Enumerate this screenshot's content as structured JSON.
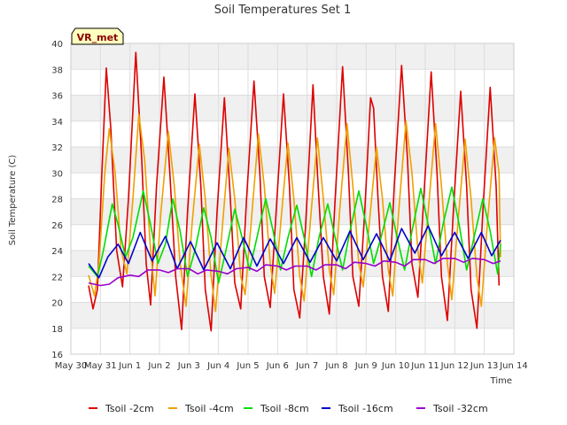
{
  "chart_data": {
    "type": "line",
    "title": "Soil Temperatures Set 1",
    "xlabel": "Time",
    "ylabel": "Soil Temperature (C)",
    "xlim": [
      0,
      15
    ],
    "ylim": [
      16,
      40
    ],
    "yticks": [
      16,
      18,
      20,
      22,
      24,
      26,
      28,
      30,
      32,
      34,
      36,
      38,
      40
    ],
    "xtick_labels": [
      "May 30",
      "May 31",
      "Jun 1",
      "Jun 2",
      "Jun 3",
      "Jun 4",
      "Jun 5",
      "Jun 6",
      "Jun 7",
      "Jun 8",
      "Jun 9",
      "Jun 10",
      "Jun 11",
      "Jun 12",
      "Jun 13",
      "Jun 14"
    ],
    "grid": true,
    "legend_position": "bottom",
    "badge": "VR_met",
    "series": [
      {
        "name": "Tsoil -2cm",
        "color": "#dd0000",
        "points": [
          [
            0.6,
            21.3
          ],
          [
            0.75,
            19.5
          ],
          [
            0.9,
            21
          ],
          [
            1.05,
            30
          ],
          [
            1.2,
            38.1
          ],
          [
            1.35,
            33.5
          ],
          [
            1.55,
            24
          ],
          [
            1.75,
            21.2
          ],
          [
            1.95,
            28
          ],
          [
            2.2,
            39.3
          ],
          [
            2.4,
            31
          ],
          [
            2.55,
            23
          ],
          [
            2.7,
            19.8
          ],
          [
            2.9,
            29
          ],
          [
            3.15,
            37.4
          ],
          [
            3.35,
            30
          ],
          [
            3.55,
            22
          ],
          [
            3.75,
            17.9
          ],
          [
            3.95,
            27
          ],
          [
            4.2,
            36.1
          ],
          [
            4.4,
            29
          ],
          [
            4.55,
            21
          ],
          [
            4.75,
            17.8
          ],
          [
            4.95,
            27
          ],
          [
            5.2,
            35.8
          ],
          [
            5.4,
            28
          ],
          [
            5.55,
            21.5
          ],
          [
            5.75,
            19.5
          ],
          [
            5.95,
            28
          ],
          [
            6.2,
            37.1
          ],
          [
            6.4,
            30
          ],
          [
            6.55,
            22
          ],
          [
            6.75,
            19.6
          ],
          [
            6.95,
            27
          ],
          [
            7.2,
            36.1
          ],
          [
            7.4,
            29
          ],
          [
            7.55,
            21
          ],
          [
            7.75,
            18.8
          ],
          [
            7.95,
            26
          ],
          [
            8.2,
            36.8
          ],
          [
            8.35,
            30
          ],
          [
            8.55,
            22
          ],
          [
            8.75,
            19.1
          ],
          [
            8.95,
            28
          ],
          [
            9.2,
            38.2
          ],
          [
            9.4,
            30
          ],
          [
            9.55,
            22
          ],
          [
            9.75,
            19.7
          ],
          [
            9.95,
            27
          ],
          [
            10.15,
            35.8
          ],
          [
            10.25,
            35
          ],
          [
            10.4,
            28
          ],
          [
            10.55,
            22
          ],
          [
            10.75,
            19.3
          ],
          [
            10.95,
            29
          ],
          [
            11.2,
            38.3
          ],
          [
            11.4,
            31
          ],
          [
            11.55,
            23
          ],
          [
            11.75,
            20.4
          ],
          [
            11.95,
            28
          ],
          [
            12.2,
            37.8
          ],
          [
            12.4,
            30
          ],
          [
            12.55,
            22
          ],
          [
            12.75,
            18.6
          ],
          [
            12.95,
            27
          ],
          [
            13.2,
            36.3
          ],
          [
            13.4,
            29
          ],
          [
            13.55,
            21
          ],
          [
            13.75,
            18
          ],
          [
            13.95,
            27
          ],
          [
            14.2,
            36.6
          ],
          [
            14.4,
            29
          ],
          [
            14.5,
            21.3
          ]
        ]
      },
      {
        "name": "Tsoil -4cm",
        "color": "#f0a000",
        "points": [
          [
            0.6,
            22.1
          ],
          [
            0.8,
            20.5
          ],
          [
            0.95,
            23
          ],
          [
            1.15,
            30
          ],
          [
            1.3,
            33.4
          ],
          [
            1.5,
            30
          ],
          [
            1.7,
            24
          ],
          [
            1.9,
            22.2
          ],
          [
            2.1,
            28
          ],
          [
            2.3,
            34.5
          ],
          [
            2.5,
            31
          ],
          [
            2.7,
            24
          ],
          [
            2.85,
            20.5
          ],
          [
            3.05,
            27
          ],
          [
            3.3,
            33.2
          ],
          [
            3.5,
            29
          ],
          [
            3.7,
            23
          ],
          [
            3.9,
            19.7
          ],
          [
            4.1,
            26
          ],
          [
            4.35,
            32.2
          ],
          [
            4.55,
            28
          ],
          [
            4.75,
            22
          ],
          [
            4.9,
            19.3
          ],
          [
            5.1,
            25
          ],
          [
            5.35,
            31.9
          ],
          [
            5.55,
            28
          ],
          [
            5.75,
            22
          ],
          [
            5.9,
            20.6
          ],
          [
            6.1,
            26
          ],
          [
            6.35,
            33
          ],
          [
            6.55,
            29
          ],
          [
            6.75,
            23
          ],
          [
            6.9,
            20.7
          ],
          [
            7.1,
            26
          ],
          [
            7.35,
            32.3
          ],
          [
            7.55,
            28
          ],
          [
            7.75,
            22
          ],
          [
            7.9,
            20.1
          ],
          [
            8.1,
            26
          ],
          [
            8.35,
            32.7
          ],
          [
            8.55,
            28
          ],
          [
            8.75,
            22.5
          ],
          [
            8.9,
            20.6
          ],
          [
            9.1,
            27
          ],
          [
            9.35,
            33.8
          ],
          [
            9.55,
            29
          ],
          [
            9.75,
            23
          ],
          [
            9.9,
            21.2
          ],
          [
            10.1,
            26
          ],
          [
            10.35,
            32
          ],
          [
            10.55,
            28
          ],
          [
            10.75,
            22.5
          ],
          [
            10.9,
            20.5
          ],
          [
            11.1,
            27
          ],
          [
            11.35,
            34
          ],
          [
            11.55,
            30
          ],
          [
            11.75,
            24
          ],
          [
            11.9,
            21.5
          ],
          [
            12.1,
            27
          ],
          [
            12.35,
            33.8
          ],
          [
            12.55,
            29
          ],
          [
            12.75,
            23
          ],
          [
            12.9,
            20.2
          ],
          [
            13.1,
            26
          ],
          [
            13.35,
            32.6
          ],
          [
            13.55,
            28
          ],
          [
            13.75,
            22
          ],
          [
            13.9,
            19.7
          ],
          [
            14.1,
            26
          ],
          [
            14.35,
            32.7
          ],
          [
            14.5,
            30
          ],
          [
            14.55,
            23.5
          ]
        ]
      },
      {
        "name": "Tsoil -8cm",
        "color": "#00dd00",
        "points": [
          [
            0.6,
            22.8
          ],
          [
            0.9,
            22
          ],
          [
            1.1,
            24
          ],
          [
            1.4,
            27.6
          ],
          [
            1.6,
            26
          ],
          [
            1.85,
            23.5
          ],
          [
            2.1,
            25
          ],
          [
            2.45,
            28.6
          ],
          [
            2.7,
            26
          ],
          [
            2.95,
            23
          ],
          [
            3.2,
            24.5
          ],
          [
            3.45,
            28
          ],
          [
            3.7,
            25.5
          ],
          [
            3.95,
            22
          ],
          [
            4.2,
            24
          ],
          [
            4.5,
            27.3
          ],
          [
            4.75,
            25
          ],
          [
            5,
            21.5
          ],
          [
            5.25,
            24
          ],
          [
            5.55,
            27.2
          ],
          [
            5.8,
            25
          ],
          [
            6.05,
            22.5
          ],
          [
            6.3,
            25
          ],
          [
            6.6,
            28
          ],
          [
            6.85,
            25.5
          ],
          [
            7.1,
            22.5
          ],
          [
            7.35,
            25
          ],
          [
            7.65,
            27.5
          ],
          [
            7.9,
            25
          ],
          [
            8.15,
            22
          ],
          [
            8.4,
            25
          ],
          [
            8.7,
            27.6
          ],
          [
            8.95,
            25
          ],
          [
            9.2,
            22.5
          ],
          [
            9.45,
            25.5
          ],
          [
            9.75,
            28.6
          ],
          [
            10,
            26
          ],
          [
            10.25,
            23
          ],
          [
            10.5,
            25
          ],
          [
            10.8,
            27.7
          ],
          [
            11.05,
            25
          ],
          [
            11.3,
            22.5
          ],
          [
            11.55,
            25.5
          ],
          [
            11.85,
            28.8
          ],
          [
            12.1,
            26
          ],
          [
            12.35,
            23
          ],
          [
            12.6,
            26
          ],
          [
            12.9,
            28.9
          ],
          [
            13.15,
            26
          ],
          [
            13.4,
            22.5
          ],
          [
            13.65,
            25
          ],
          [
            13.95,
            28
          ],
          [
            14.2,
            25.5
          ],
          [
            14.45,
            22.2
          ],
          [
            14.55,
            24.5
          ]
        ]
      },
      {
        "name": "Tsoil -16cm",
        "color": "#0000cc",
        "points": [
          [
            0.6,
            23
          ],
          [
            0.95,
            21.9
          ],
          [
            1.25,
            23.5
          ],
          [
            1.6,
            24.5
          ],
          [
            1.95,
            23
          ],
          [
            2.35,
            25.4
          ],
          [
            2.75,
            23.2
          ],
          [
            3.2,
            25.1
          ],
          [
            3.6,
            22.6
          ],
          [
            4.05,
            24.7
          ],
          [
            4.5,
            22.5
          ],
          [
            4.95,
            24.6
          ],
          [
            5.4,
            22.6
          ],
          [
            5.85,
            25
          ],
          [
            6.3,
            22.8
          ],
          [
            6.75,
            24.9
          ],
          [
            7.2,
            23
          ],
          [
            7.65,
            25
          ],
          [
            8.1,
            23.1
          ],
          [
            8.55,
            25
          ],
          [
            9,
            23.2
          ],
          [
            9.45,
            25.5
          ],
          [
            9.9,
            23.3
          ],
          [
            10.35,
            25.3
          ],
          [
            10.8,
            23.2
          ],
          [
            11.2,
            25.7
          ],
          [
            11.65,
            23.8
          ],
          [
            12.1,
            25.9
          ],
          [
            12.55,
            23.6
          ],
          [
            13,
            25.4
          ],
          [
            13.45,
            23.4
          ],
          [
            13.9,
            25.4
          ],
          [
            14.25,
            23.6
          ],
          [
            14.55,
            24.8
          ]
        ]
      },
      {
        "name": "Tsoil -32cm",
        "color": "#9900cc",
        "points": [
          [
            0.6,
            21.5
          ],
          [
            1,
            21.3
          ],
          [
            1.3,
            21.4
          ],
          [
            1.6,
            21.9
          ],
          [
            2.0,
            22.1
          ],
          [
            2.3,
            22
          ],
          [
            2.6,
            22.5
          ],
          [
            3.0,
            22.5
          ],
          [
            3.3,
            22.3
          ],
          [
            3.6,
            22.6
          ],
          [
            4.0,
            22.6
          ],
          [
            4.3,
            22.2
          ],
          [
            4.6,
            22.5
          ],
          [
            5.0,
            22.4
          ],
          [
            5.3,
            22.2
          ],
          [
            5.6,
            22.6
          ],
          [
            6.0,
            22.7
          ],
          [
            6.3,
            22.4
          ],
          [
            6.6,
            22.9
          ],
          [
            7.0,
            22.8
          ],
          [
            7.3,
            22.5
          ],
          [
            7.6,
            22.8
          ],
          [
            8.0,
            22.8
          ],
          [
            8.3,
            22.5
          ],
          [
            8.6,
            22.9
          ],
          [
            9.0,
            22.9
          ],
          [
            9.3,
            22.6
          ],
          [
            9.6,
            23.1
          ],
          [
            10.0,
            23
          ],
          [
            10.3,
            22.8
          ],
          [
            10.6,
            23.2
          ],
          [
            11.0,
            23.1
          ],
          [
            11.3,
            22.8
          ],
          [
            11.6,
            23.3
          ],
          [
            12.0,
            23.3
          ],
          [
            12.3,
            23
          ],
          [
            12.6,
            23.4
          ],
          [
            13.0,
            23.4
          ],
          [
            13.3,
            23.1
          ],
          [
            13.6,
            23.4
          ],
          [
            14.0,
            23.3
          ],
          [
            14.3,
            23
          ],
          [
            14.55,
            23.2
          ]
        ]
      }
    ]
  }
}
